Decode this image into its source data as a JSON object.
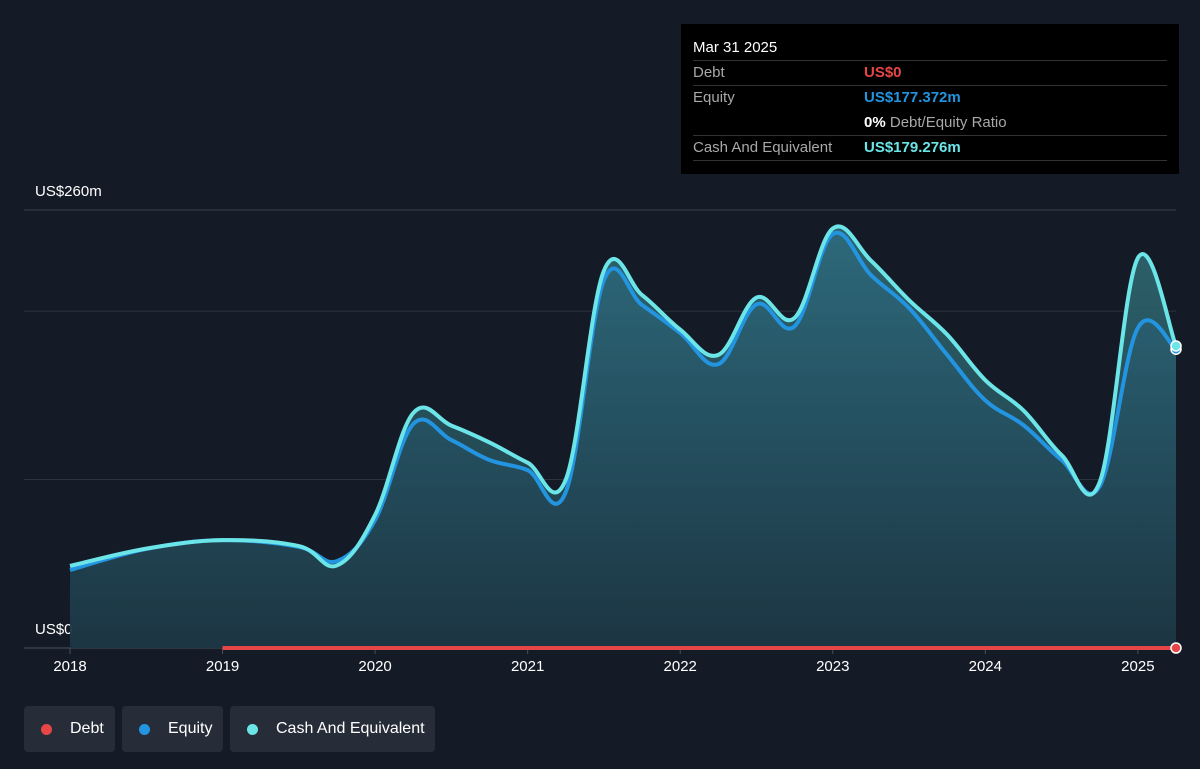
{
  "chart_data": {
    "type": "line",
    "x": [
      2018,
      2018.5,
      2019,
      2019.5,
      2019.75,
      2020,
      2020.25,
      2020.5,
      2020.75,
      2021,
      2021.25,
      2021.5,
      2021.75,
      2022,
      2022.25,
      2022.5,
      2022.75,
      2023,
      2023.25,
      2023.5,
      2023.75,
      2024,
      2024.25,
      2024.5,
      2024.75,
      2025,
      2025.25
    ],
    "series": [
      {
        "name": "Debt",
        "color": "#e64646",
        "values": [
          null,
          null,
          0,
          0,
          0,
          0,
          0,
          0,
          0,
          0,
          0,
          0,
          0,
          0,
          0,
          0,
          0,
          0,
          0,
          0,
          0,
          0,
          0,
          0,
          0,
          0,
          0
        ]
      },
      {
        "name": "Equity",
        "color": "#2394df",
        "values": [
          46.3,
          58.8,
          64,
          60,
          51.6,
          76,
          133,
          123.4,
          111.6,
          105.6,
          92.6,
          218.4,
          203.6,
          187,
          168.5,
          204,
          191,
          245.7,
          221.4,
          201.8,
          174,
          147,
          132.3,
          111.6,
          96,
          190,
          177.372
        ]
      },
      {
        "name": "Cash And Equivalent",
        "color": "#6ce5e8",
        "values": [
          48.7,
          59,
          64,
          60.5,
          49,
          79,
          139.5,
          132,
          122,
          110,
          100,
          224,
          209.5,
          189,
          174,
          208,
          196,
          249,
          230,
          206.5,
          186,
          159,
          141,
          114.5,
          98.5,
          231.5,
          179.276
        ]
      }
    ],
    "xlim": [
      2018,
      2025.25
    ],
    "xticks": [
      2018,
      2019,
      2020,
      2021,
      2022,
      2023,
      2024,
      2025
    ],
    "ylim": [
      0,
      260
    ],
    "yticks": [
      {
        "value": 0,
        "label": "US$0"
      },
      {
        "value": 260,
        "label": "US$260m"
      }
    ],
    "ygrid": [
      100,
      200
    ],
    "legend": "bottom-left",
    "tooltip": {
      "date": "Mar 31 2025",
      "rows": [
        {
          "label": "Debt",
          "value": "US$0"
        },
        {
          "label": "Equity",
          "value": "US$177.372m"
        },
        {
          "value": "0%",
          "note": "Debt/Equity Ratio"
        },
        {
          "label": "Cash And Equivalent",
          "value": "US$179.276m"
        }
      ]
    }
  }
}
